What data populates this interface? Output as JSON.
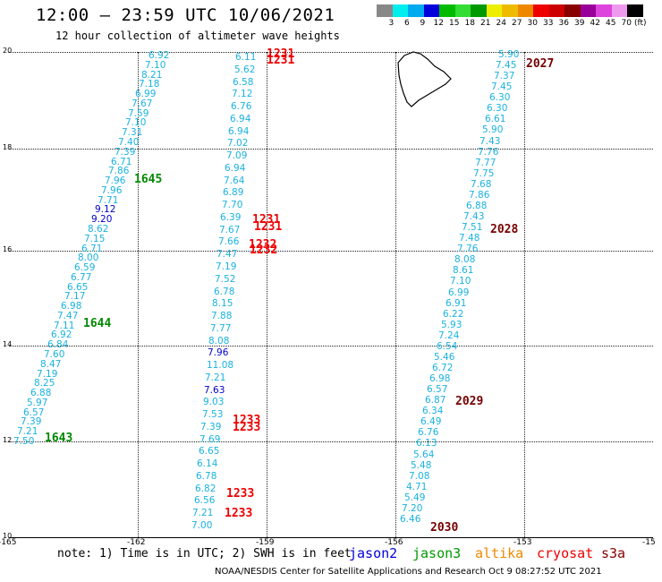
{
  "header": {
    "title": "12:00 – 23:59 UTC 10/06/2021",
    "subtitle": "12 hour collection of altimeter wave heights"
  },
  "color_scale": {
    "swatches": [
      "#888888",
      "#00eeee",
      "#00aaee",
      "#0000dd",
      "#00bb00",
      "#33dd33",
      "#009900",
      "#eeee00",
      "#eebb00",
      "#ee8800",
      "#ee0000",
      "#cc0000",
      "#880000",
      "#990099",
      "#dd44dd",
      "#ee99ee",
      "#000000"
    ],
    "labels": [
      "3",
      "6",
      "9",
      "12",
      "15",
      "18",
      "21",
      "24",
      "27",
      "30",
      "33",
      "36",
      "39",
      "42",
      "45",
      "70",
      "(ft)"
    ]
  },
  "map": {
    "lat_labels": [
      "20",
      "18",
      "16",
      "14",
      "12",
      "10"
    ],
    "lon_labels": [
      "-165",
      "-162",
      "-159",
      "-156",
      "-153",
      "-15"
    ]
  },
  "tracks": [
    {
      "label": "1645",
      "color": "#008800"
    },
    {
      "label": "1644",
      "color": "#008800"
    },
    {
      "label": "1643",
      "color": "#008800"
    },
    {
      "label": "1231",
      "color": "#ee0000"
    },
    {
      "label": "1231",
      "color": "#ee0000"
    },
    {
      "label": "1231",
      "color": "#ee0000"
    },
    {
      "label": "1231",
      "color": "#ee0000"
    },
    {
      "label": "1232",
      "color": "#ee0000"
    },
    {
      "label": "1232",
      "color": "#ee0000"
    },
    {
      "label": "1233",
      "color": "#ee0000"
    },
    {
      "label": "1233",
      "color": "#ee0000"
    },
    {
      "label": "1233",
      "color": "#ee0000"
    },
    {
      "label": "1233",
      "color": "#ee0000"
    },
    {
      "label": "2027",
      "color": "#770000"
    },
    {
      "label": "2028",
      "color": "#770000"
    },
    {
      "label": "2029",
      "color": "#770000"
    },
    {
      "label": "2030",
      "color": "#770000"
    }
  ],
  "values": [
    "6.92",
    "7.10",
    "8.21",
    "7.18",
    "6.99",
    "7.67",
    "7.59",
    "7.10",
    "7.31",
    "7.40",
    "7.39",
    "6.71",
    "7.86",
    "7.96",
    "7.96",
    "7.71",
    "9.12",
    "9.20",
    "8.62",
    "7.15",
    "6.71",
    "8.00",
    "6.59",
    "6.77",
    "6.65",
    "7.17",
    "6.98",
    "7.47",
    "7.11",
    "6.92",
    "6.84",
    "7.60",
    "8.47",
    "7.19",
    "8.25",
    "6.88",
    "5.97",
    "6.57",
    "7.39",
    "7.21",
    "7.50",
    "6.11",
    "5.62",
    "6.58",
    "7.12",
    "6.76",
    "6.94",
    "6.94",
    "7.02",
    "7.09",
    "6.94",
    "7.64",
    "6.89",
    "7.70",
    "6.39",
    "7.67",
    "7.66",
    "7.47",
    "7.19",
    "7.52",
    "6.78",
    "8.15",
    "7.88",
    "7.77",
    "8.08",
    "7.96",
    "11.08",
    "7.21",
    "7.63",
    "9.03",
    "7.53",
    "7.39",
    "7.69",
    "6.65",
    "6.14",
    "6.78",
    "6.82",
    "6.56",
    "7.21",
    "7.00",
    "5.90",
    "7.45",
    "7.37",
    "7.45",
    "6.30",
    "6.30",
    "6.61",
    "5.90",
    "7.43",
    "7.76",
    "7.77",
    "7.75",
    "7.68",
    "7.86",
    "6.88",
    "7.43",
    "7.51",
    "7.48",
    "7.76",
    "8.08",
    "8.61",
    "7.10",
    "6.99",
    "6.91",
    "6.22",
    "5.93",
    "7.24",
    "6.54",
    "5.46",
    "6.72",
    "6.98",
    "6.57",
    "6.87",
    "6.34",
    "6.49",
    "6.76",
    "6.13",
    "5.64",
    "5.48",
    "7.08",
    "4.71",
    "5.49",
    "7.20",
    "6.46"
  ],
  "value_colors": {
    "normal": "#1ab2e0",
    "high": "#0000cc"
  },
  "footer": {
    "note": "note: 1) Time is in UTC; 2) SWH is in feet",
    "legend": [
      {
        "name": "jason2",
        "color": "#0000dd"
      },
      {
        "name": "jason3",
        "color": "#009900"
      },
      {
        "name": "altika",
        "color": "#ee8800"
      },
      {
        "name": "cryosat",
        "color": "#ee0000"
      },
      {
        "name": "s3a",
        "color": "#880000"
      }
    ],
    "credit": "NOAA/NESDIS Center for Satellite Applications and Research    Oct  9 08:27:52 UTC 2021"
  }
}
